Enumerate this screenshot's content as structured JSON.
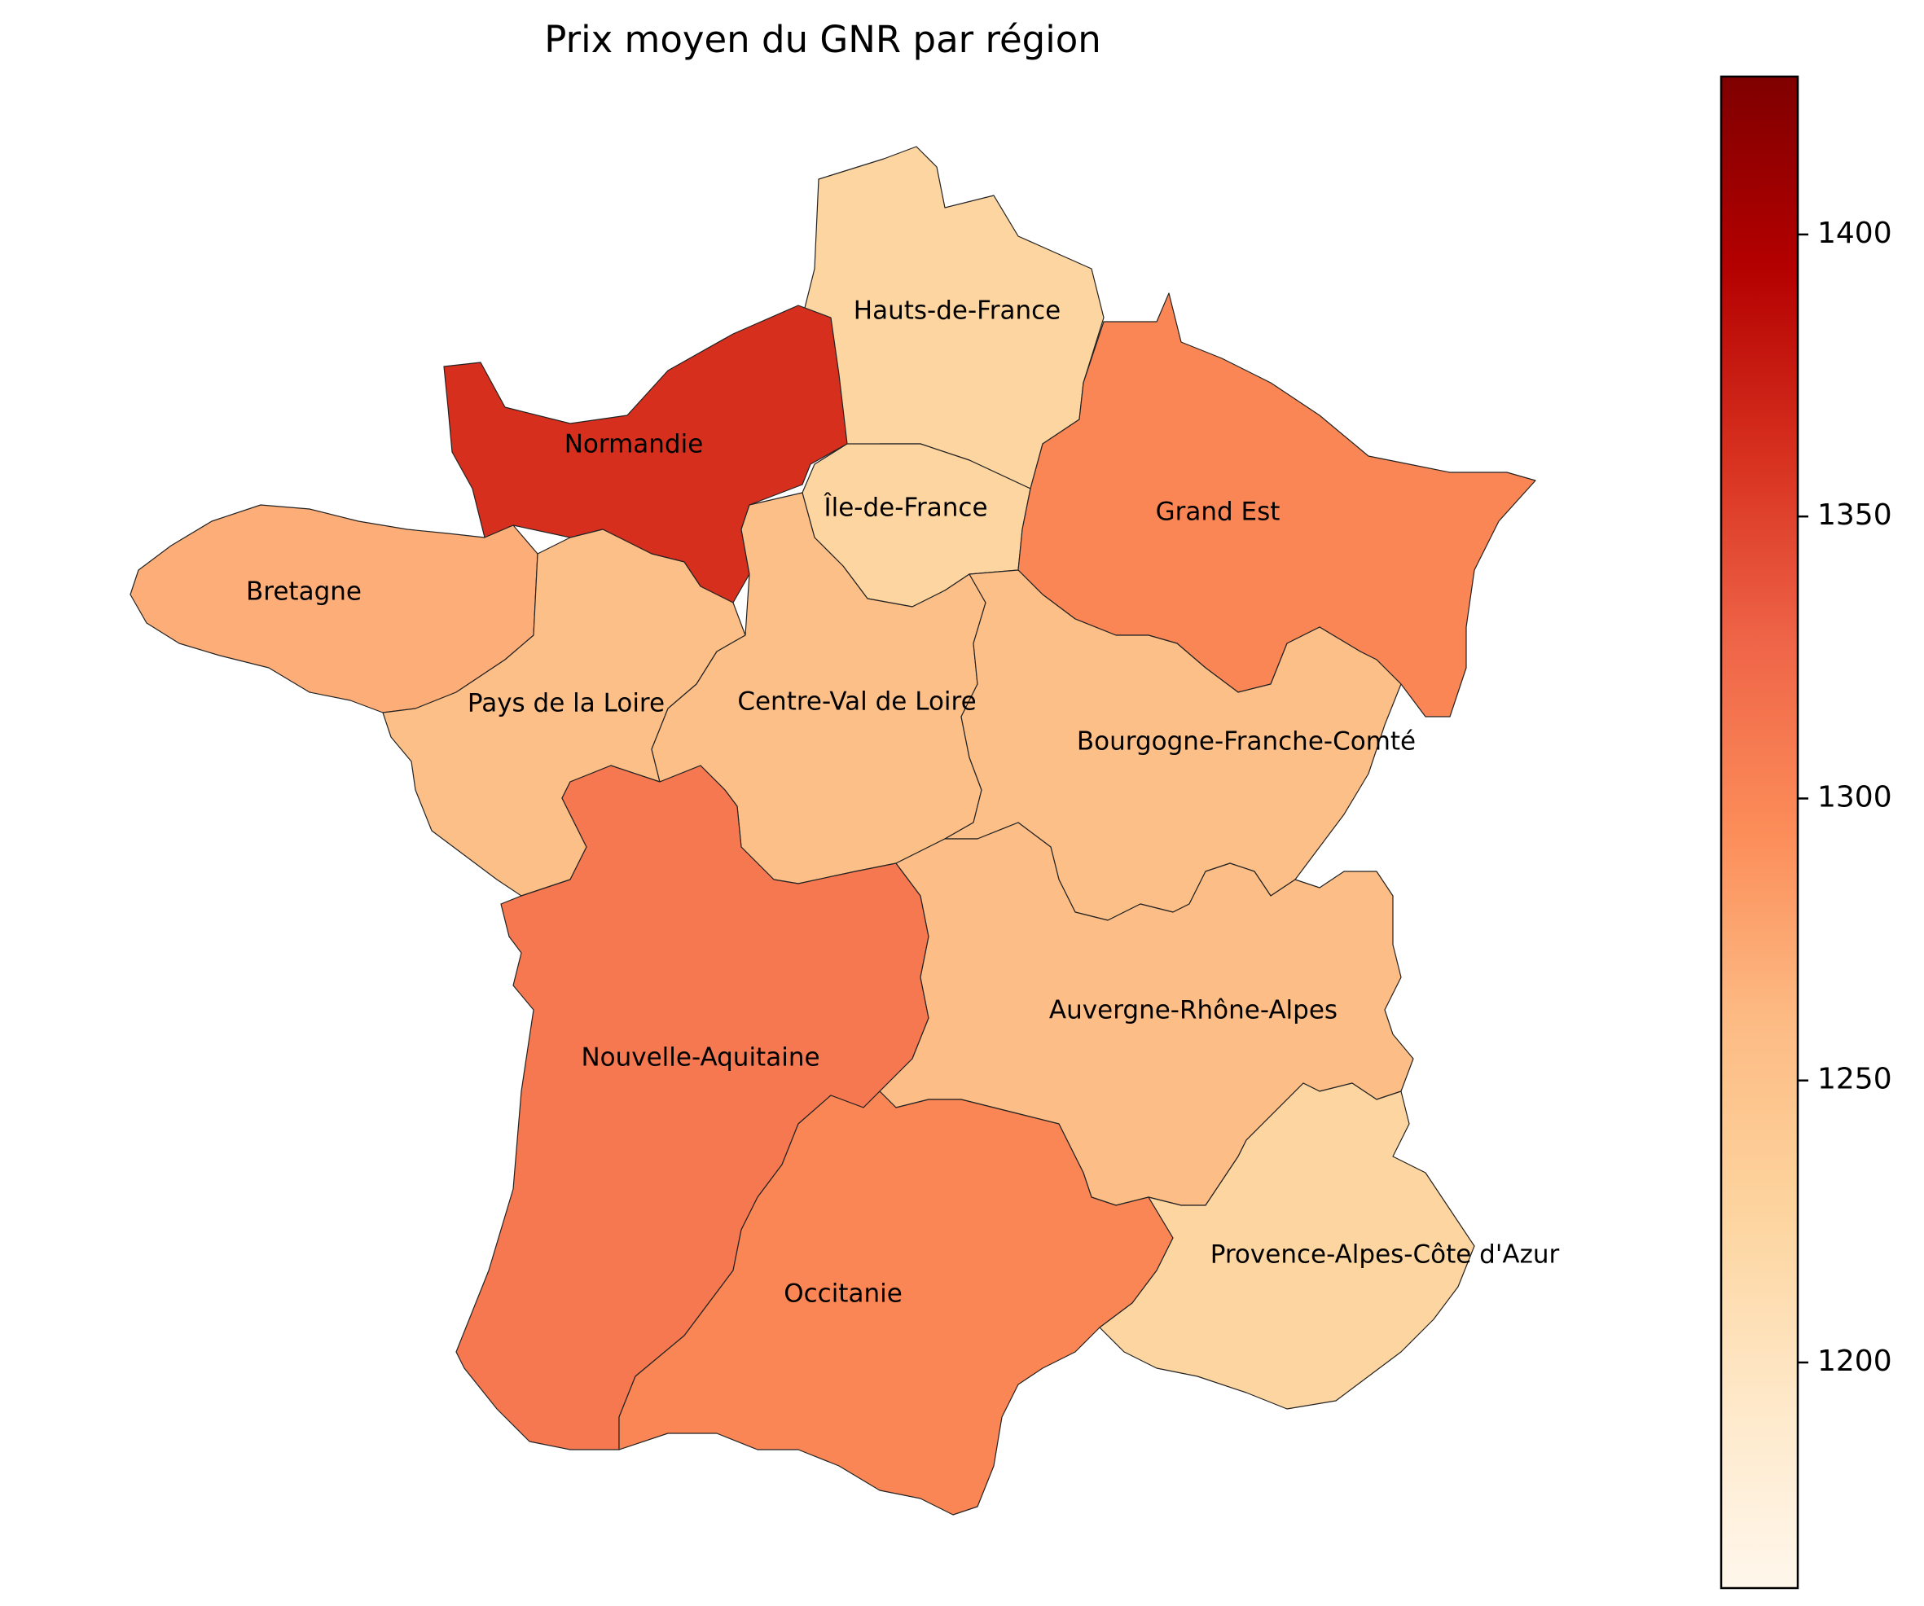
{
  "title": "Prix moyen du GNR par région",
  "colormap": "OrRd",
  "colorbar": {
    "vmin": 1160,
    "vmax": 1428,
    "ticks": [
      1200,
      1250,
      1300,
      1350,
      1400
    ],
    "tick_labels": [
      "1200",
      "1250",
      "1300",
      "1350",
      "1400"
    ],
    "colors": [
      "#fff7ec",
      "#fee8c8",
      "#fdd49e",
      "#fdbb84",
      "#fc8d59",
      "#ef6548",
      "#d7301f",
      "#b30000",
      "#7f0000"
    ]
  },
  "chart_data": {
    "type": "choropleth",
    "title": "Prix moyen du GNR par région",
    "regions": [
      {
        "name": "Hauts-de-France",
        "value": 1225
      },
      {
        "name": "Normandie",
        "value": 1362
      },
      {
        "name": "Île-de-France",
        "value": 1225
      },
      {
        "name": "Grand Est",
        "value": 1300
      },
      {
        "name": "Bretagne",
        "value": 1270
      },
      {
        "name": "Pays de la Loire",
        "value": 1255
      },
      {
        "name": "Centre-Val de Loire",
        "value": 1255
      },
      {
        "name": "Bourgogne-Franche-Comté",
        "value": 1255
      },
      {
        "name": "Nouvelle-Aquitaine",
        "value": 1312
      },
      {
        "name": "Auvergne-Rhône-Alpes",
        "value": 1258
      },
      {
        "name": "Occitanie",
        "value": 1300
      },
      {
        "name": "Provence-Alpes-Côte d'Azur",
        "value": 1225
      }
    ]
  }
}
